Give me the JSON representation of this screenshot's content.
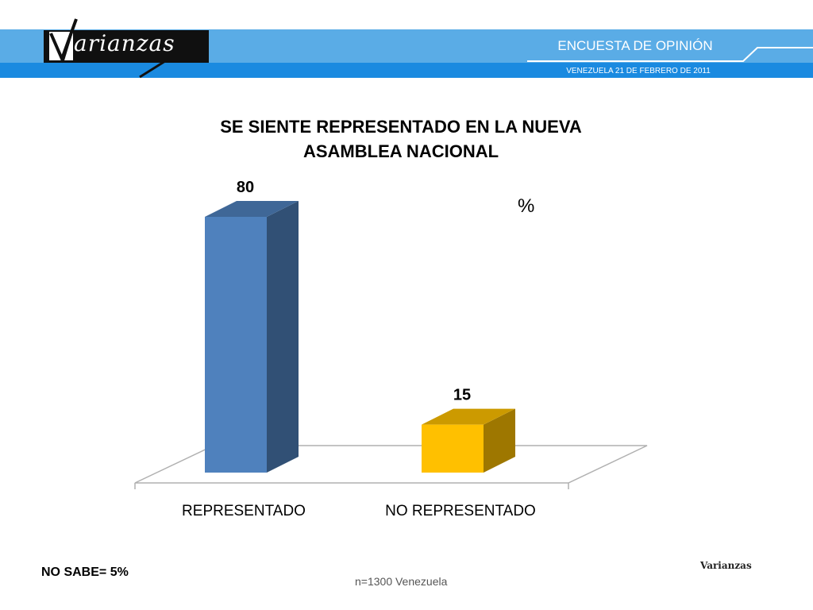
{
  "header": {
    "title": "ENCUESTA DE OPINIÓN",
    "subtitle": "VENEZUELA  21 DE  FEBRERO DE 2011",
    "colors": {
      "banner_light": "#5aace6",
      "banner_dark": "#1a8ae0"
    }
  },
  "logo": {
    "text": "arianzas",
    "icon": "varianzas-logo-icon"
  },
  "chart_data": {
    "type": "bar",
    "title": "SE SIENTE REPRESENTADO EN LA NUEVA  ASAMBLEA NACIONAL",
    "unit": "%",
    "categories": [
      "REPRESENTADO",
      "NO REPRESENTADO"
    ],
    "values": [
      80,
      15
    ],
    "colors": [
      "#4f81bd",
      "#ffc000"
    ],
    "ylim": [
      0,
      80
    ],
    "grid": false,
    "legend": "none"
  },
  "footer": {
    "no_sabe": "NO SABE= 5%",
    "sample": "n=1300  Venezuela",
    "brand": "Varianzas"
  }
}
